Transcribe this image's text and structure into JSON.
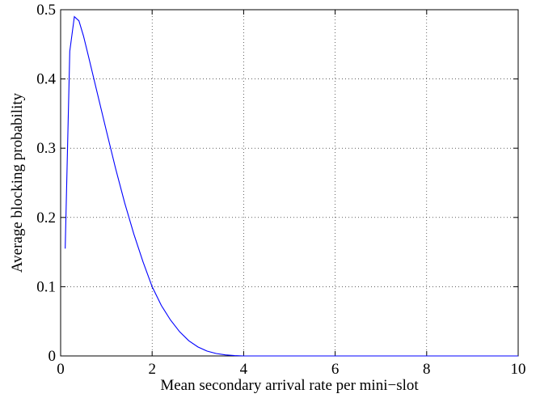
{
  "chart_data": {
    "type": "line",
    "title": "",
    "xlabel": "Mean secondary arrival rate per mini−slot",
    "ylabel": "Average blocking probability",
    "xlim": [
      0,
      10
    ],
    "ylim": [
      0,
      0.5
    ],
    "xticks": [
      0,
      2,
      4,
      6,
      8,
      10
    ],
    "xtick_labels": [
      "0",
      "2",
      "4",
      "6",
      "8",
      "10"
    ],
    "yticks": [
      0,
      0.1,
      0.2,
      0.3,
      0.4,
      0.5
    ],
    "ytick_labels": [
      "0",
      "0.1",
      "0.2",
      "0.3",
      "0.4",
      "0.5"
    ],
    "grid": true,
    "legend": "none",
    "line_color": "#0000ff",
    "series": [
      {
        "x": [
          0.1,
          0.2,
          0.3,
          0.4,
          0.5,
          0.6,
          0.8,
          1.0,
          1.2,
          1.4,
          1.6,
          1.8,
          2.0,
          2.2,
          2.4,
          2.6,
          2.8,
          3.0,
          3.2,
          3.4,
          3.6,
          3.8,
          4.0,
          4.5,
          5,
          6,
          7,
          8,
          9,
          10
        ],
        "y": [
          0.155,
          0.44,
          0.49,
          0.484,
          0.462,
          0.435,
          0.38,
          0.325,
          0.271,
          0.221,
          0.176,
          0.136,
          0.1,
          0.073,
          0.052,
          0.035,
          0.022,
          0.013,
          0.007,
          0.0035,
          0.0015,
          0.0005,
          0.0,
          0.0,
          0.0,
          0.0,
          0.0,
          0.0,
          0.0,
          0.0
        ]
      }
    ]
  }
}
